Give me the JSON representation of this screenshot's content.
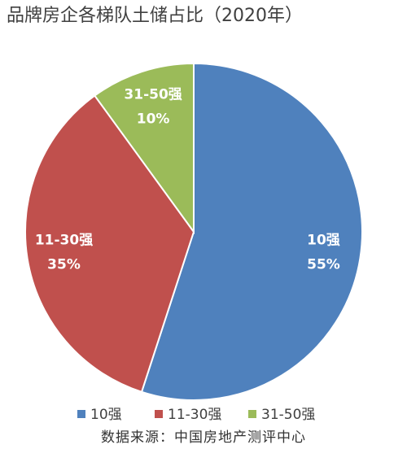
{
  "chart_data": {
    "type": "pie",
    "title": "品牌房企各梯队土储占比（2020年）",
    "categories": [
      "10强",
      "11-30强",
      "31-50强"
    ],
    "values": [
      55,
      35,
      10
    ],
    "value_labels": [
      "55%",
      "35%",
      "10%"
    ],
    "colors": [
      "#4f81bd",
      "#c0504d",
      "#9bbb59"
    ],
    "source": "数据来源：中国房地产测评中心"
  }
}
